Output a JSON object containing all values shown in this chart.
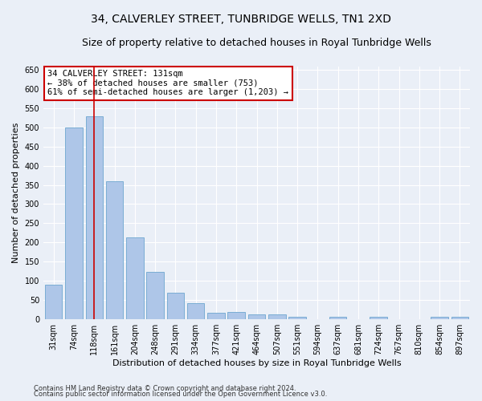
{
  "title": "34, CALVERLEY STREET, TUNBRIDGE WELLS, TN1 2XD",
  "subtitle": "Size of property relative to detached houses in Royal Tunbridge Wells",
  "xlabel": "Distribution of detached houses by size in Royal Tunbridge Wells",
  "ylabel": "Number of detached properties",
  "footnote1": "Contains HM Land Registry data © Crown copyright and database right 2024.",
  "footnote2": "Contains public sector information licensed under the Open Government Licence v3.0.",
  "bar_labels": [
    "31sqm",
    "74sqm",
    "118sqm",
    "161sqm",
    "204sqm",
    "248sqm",
    "291sqm",
    "334sqm",
    "377sqm",
    "421sqm",
    "464sqm",
    "507sqm",
    "551sqm",
    "594sqm",
    "637sqm",
    "681sqm",
    "724sqm",
    "767sqm",
    "810sqm",
    "854sqm",
    "897sqm"
  ],
  "bar_values": [
    90,
    500,
    530,
    360,
    213,
    122,
    68,
    42,
    17,
    19,
    11,
    11,
    6,
    0,
    5,
    0,
    5,
    0,
    0,
    5,
    5
  ],
  "bar_color": "#aec6e8",
  "bar_edgecolor": "#7aadd4",
  "vline_x": 2,
  "vline_color": "#cc0000",
  "annotation_title": "34 CALVERLEY STREET: 131sqm",
  "annotation_line1": "← 38% of detached houses are smaller (753)",
  "annotation_line2": "61% of semi-detached houses are larger (1,203) →",
  "annotation_box_color": "#ffffff",
  "annotation_box_edgecolor": "#cc0000",
  "ylim": [
    0,
    660
  ],
  "yticks": [
    0,
    50,
    100,
    150,
    200,
    250,
    300,
    350,
    400,
    450,
    500,
    550,
    600,
    650
  ],
  "background_color": "#eaeff7",
  "axes_background": "#eaeff7",
  "title_fontsize": 10,
  "subtitle_fontsize": 9,
  "xlabel_fontsize": 8,
  "ylabel_fontsize": 8,
  "tick_fontsize": 7,
  "footnote_fontsize": 6
}
